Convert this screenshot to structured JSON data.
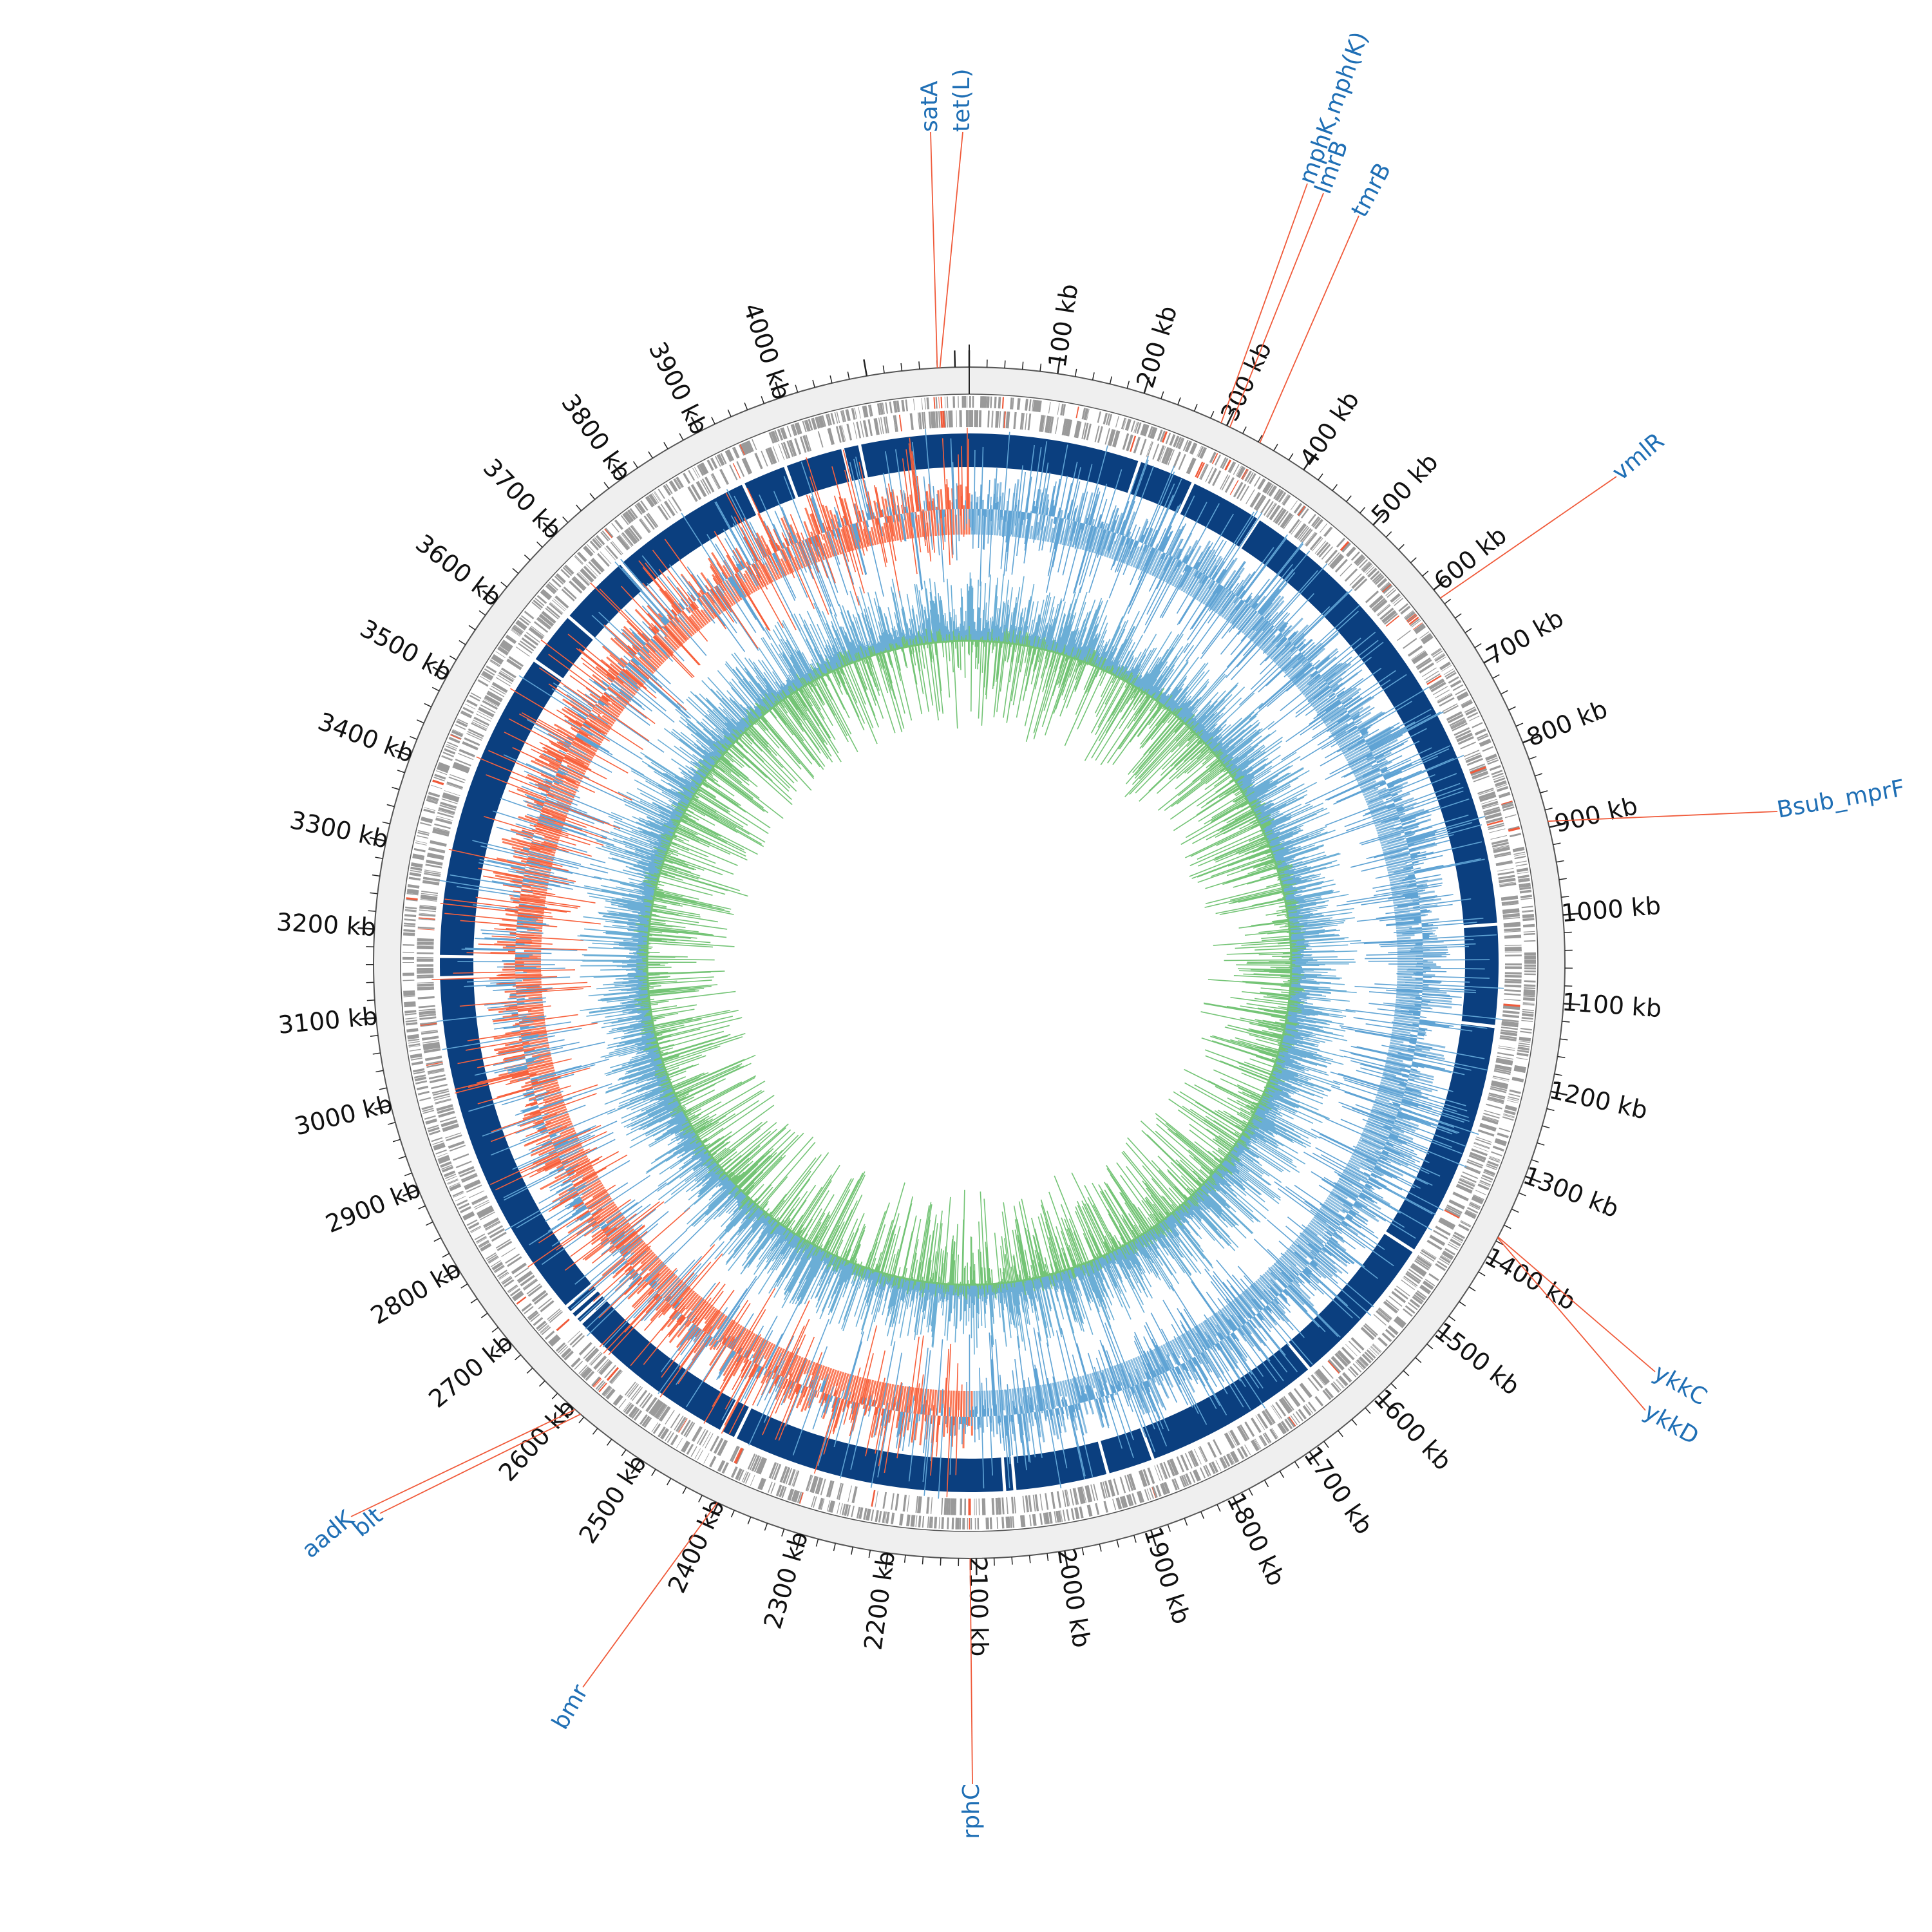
{
  "genome": {
    "length_kb": 4216
  },
  "colors": {
    "ring_bg": "#efefef",
    "ring_line": "#555555",
    "cds": "#9a9a9a",
    "backbone": "#0b3f7f",
    "skew_positive": "#fa7b5a",
    "skew_negative": "#8bbde0",
    "gc_outer": "#6baed6",
    "gc_inner": "#74c476",
    "label": "#1f6fb5",
    "leader": "#f05a3a",
    "tick_text": "#111111"
  },
  "ticks": {
    "unit": "kb",
    "labels": [
      "100 kb",
      "200 kb",
      "300 kb",
      "400 kb",
      "500 kb",
      "600 kb",
      "700 kb",
      "800 kb",
      "900 kb",
      "1000 kb",
      "1100 kb",
      "1200 kb",
      "1300 kb",
      "1400 kb",
      "1500 kb",
      "1600 kb",
      "1700 kb",
      "1800 kb",
      "1900 kb",
      "2000 kb",
      "2100 kb",
      "2200 kb",
      "2300 kb",
      "2400 kb",
      "2500 kb",
      "2600 kb",
      "2700 kb",
      "2800 kb",
      "2900 kb",
      "3000 kb",
      "3100 kb",
      "3200 kb",
      "3300 kb",
      "3400 kb",
      "3500 kb",
      "3600 kb",
      "3700 kb",
      "3800 kb",
      "3900 kb",
      "4000 kb"
    ]
  },
  "backbone_gaps_kb": [
    220,
    293,
    388,
    1005,
    1135,
    1440,
    1640,
    1870,
    1930,
    2050,
    2063,
    2415,
    2435,
    2660,
    2669,
    2678,
    2688,
    3143,
    3170,
    3570,
    3640,
    3735,
    3920,
    3978,
    4054,
    4076
  ],
  "resistance_genes": [
    {
      "name": "tet(L)",
      "kb": 4183
    },
    {
      "name": "satA",
      "kb": 4180
    },
    {
      "name": "mphK,mph(K)",
      "kb": 293
    },
    {
      "name": "lmrB",
      "kb": 304
    },
    {
      "name": "tmrB",
      "kb": 342
    },
    {
      "name": "vmlR",
      "kb": 612
    },
    {
      "name": "Bsub_mprF",
      "kb": 893
    },
    {
      "name": "ykkC",
      "kb": 1375
    },
    {
      "name": "ykkD",
      "kb": 1376
    },
    {
      "name": "rphC",
      "kb": 2107
    },
    {
      "name": "bmr",
      "kb": 2401
    },
    {
      "name": "aadK",
      "kb": 2593
    },
    {
      "name": "blt",
      "kb": 2585
    }
  ]
}
